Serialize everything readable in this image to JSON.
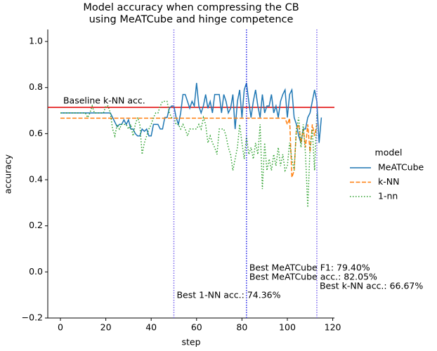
{
  "chart_data": {
    "type": "line",
    "title": [
      "Model accuracy when compressing the CB",
      "using MeATCube and hinge competence"
    ],
    "x_label": "step",
    "y_label": "accuracy",
    "x": [
      0,
      1,
      2,
      3,
      4,
      5,
      6,
      7,
      8,
      9,
      10,
      11,
      12,
      13,
      14,
      15,
      16,
      17,
      18,
      19,
      20,
      21,
      22,
      23,
      24,
      25,
      26,
      27,
      28,
      29,
      30,
      31,
      32,
      33,
      34,
      35,
      36,
      37,
      38,
      39,
      40,
      41,
      42,
      43,
      44,
      45,
      46,
      47,
      48,
      49,
      50,
      51,
      52,
      53,
      54,
      55,
      56,
      57,
      58,
      59,
      60,
      61,
      62,
      63,
      64,
      65,
      66,
      67,
      68,
      69,
      70,
      71,
      72,
      73,
      74,
      75,
      76,
      77,
      78,
      79,
      80,
      81,
      82,
      83,
      84,
      85,
      86,
      87,
      88,
      89,
      90,
      91,
      92,
      93,
      94,
      95,
      96,
      97,
      98,
      99,
      100,
      101,
      102,
      103,
      104,
      105,
      106,
      107,
      108,
      109,
      110,
      111,
      112,
      113,
      114,
      115
    ],
    "series": [
      {
        "name": "MeATCube",
        "color": "#1f77b4",
        "dash": "solid",
        "values": [
          0.69,
          0.69,
          0.69,
          0.69,
          0.69,
          0.69,
          0.69,
          0.69,
          0.69,
          0.69,
          0.69,
          0.69,
          0.69,
          0.69,
          0.69,
          0.69,
          0.69,
          0.69,
          0.69,
          0.69,
          0.69,
          0.69,
          0.69,
          0.67,
          0.65,
          0.63,
          0.64,
          0.64,
          0.66,
          0.64,
          0.66,
          0.62,
          0.62,
          0.6,
          0.59,
          0.59,
          0.62,
          0.61,
          0.62,
          0.59,
          0.59,
          0.64,
          0.64,
          0.64,
          0.62,
          0.62,
          0.67,
          0.67,
          0.71,
          0.72,
          0.72,
          0.67,
          0.64,
          0.69,
          0.77,
          0.77,
          0.74,
          0.71,
          0.74,
          0.72,
          0.82,
          0.72,
          0.69,
          0.72,
          0.77,
          0.71,
          0.74,
          0.69,
          0.77,
          0.77,
          0.77,
          0.69,
          0.77,
          0.74,
          0.69,
          0.71,
          0.77,
          0.62,
          0.74,
          0.79,
          0.67,
          0.79,
          0.82,
          0.74,
          0.67,
          0.74,
          0.79,
          0.72,
          0.67,
          0.77,
          0.69,
          0.72,
          0.72,
          0.77,
          0.69,
          0.72,
          0.67,
          0.74,
          0.77,
          0.79,
          0.67,
          0.77,
          0.79,
          0.67,
          0.64,
          0.59,
          0.56,
          0.62,
          0.62,
          0.67,
          0.69,
          0.74,
          0.79,
          0.74,
          0.56,
          0.67
        ]
      },
      {
        "name": "k-NN",
        "color": "#ff7f0e",
        "dash": "dashed",
        "values": [
          0.667,
          0.667,
          0.667,
          0.667,
          0.667,
          0.667,
          0.667,
          0.667,
          0.667,
          0.667,
          0.667,
          0.667,
          0.667,
          0.667,
          0.667,
          0.667,
          0.667,
          0.667,
          0.667,
          0.667,
          0.667,
          0.667,
          0.667,
          0.667,
          0.667,
          0.667,
          0.667,
          0.667,
          0.667,
          0.667,
          0.667,
          0.667,
          0.667,
          0.667,
          0.667,
          0.667,
          0.667,
          0.667,
          0.667,
          0.667,
          0.667,
          0.667,
          0.667,
          0.667,
          0.667,
          0.667,
          0.667,
          0.667,
          0.667,
          0.667,
          0.667,
          0.667,
          0.667,
          0.667,
          0.667,
          0.667,
          0.667,
          0.667,
          0.667,
          0.667,
          0.667,
          0.667,
          0.667,
          0.667,
          0.667,
          0.667,
          0.667,
          0.667,
          0.667,
          0.667,
          0.667,
          0.667,
          0.667,
          0.667,
          0.667,
          0.667,
          0.667,
          0.667,
          0.667,
          0.667,
          0.667,
          0.667,
          0.667,
          0.667,
          0.667,
          0.667,
          0.667,
          0.667,
          0.667,
          0.667,
          0.667,
          0.667,
          0.667,
          0.667,
          0.667,
          0.667,
          0.667,
          0.667,
          0.667,
          0.667,
          0.64,
          0.667,
          0.41,
          0.44,
          0.62,
          0.64,
          0.56,
          0.62,
          0.54,
          0.64,
          0.52,
          0.64,
          0.59,
          0.64,
          null,
          null
        ]
      },
      {
        "name": "1-nn",
        "color": "#2ca02c",
        "dash": "dotted",
        "values": [
          0.69,
          0.69,
          0.69,
          0.69,
          0.69,
          0.69,
          0.69,
          0.69,
          0.69,
          0.69,
          0.69,
          0.69,
          0.67,
          0.69,
          0.72,
          0.69,
          0.69,
          0.69,
          0.69,
          0.69,
          0.72,
          0.72,
          0.69,
          0.62,
          0.59,
          0.64,
          0.62,
          0.64,
          0.64,
          0.64,
          0.62,
          0.64,
          0.59,
          0.64,
          0.67,
          0.64,
          0.51,
          0.56,
          0.59,
          0.62,
          0.64,
          0.67,
          0.69,
          0.69,
          0.72,
          0.74,
          0.74,
          0.74,
          0.69,
          0.67,
          0.67,
          0.64,
          0.64,
          0.62,
          0.64,
          0.62,
          0.59,
          0.62,
          0.62,
          0.62,
          0.62,
          0.64,
          0.62,
          0.67,
          0.64,
          0.56,
          0.59,
          0.56,
          0.54,
          0.51,
          0.62,
          0.62,
          0.62,
          0.59,
          0.54,
          0.51,
          0.44,
          0.49,
          0.54,
          0.64,
          0.56,
          0.49,
          0.59,
          0.51,
          0.54,
          0.49,
          0.56,
          0.51,
          0.64,
          0.36,
          0.56,
          0.44,
          0.49,
          0.44,
          0.51,
          0.46,
          0.54,
          0.46,
          0.51,
          0.44,
          0.46,
          0.56,
          0.49,
          0.44,
          0.62,
          0.67,
          0.54,
          0.64,
          0.51,
          0.28,
          0.54,
          0.62,
          0.44,
          0.69,
          null,
          null
        ]
      }
    ],
    "hline": {
      "y": 0.7143,
      "color": "#e00000",
      "label": "Baseline k-NN acc."
    },
    "vlines": [
      {
        "x": 50,
        "color": "#7b68ee",
        "labels": [
          "Best 1-NN acc.: 74.36%"
        ]
      },
      {
        "x": 82,
        "color": "#2020e8",
        "labels": [
          "Best MeATCube F1: 79.40%",
          "Best MeATCube acc.: 82.05%"
        ]
      },
      {
        "x": 113,
        "color": "#7b68ee",
        "labels": [
          "Best k-NN acc.: 66.67%"
        ]
      }
    ],
    "xlim": [
      -5.57,
      120.75
    ],
    "xticks": [
      0,
      20,
      40,
      60,
      80,
      100,
      120
    ],
    "ylim": [
      -0.2,
      1.052
    ],
    "yticks": [
      {
        "value": -0.2,
        "label": "−0.2"
      },
      {
        "value": 0,
        "label": "0.0"
      },
      0.2,
      0.4,
      0.6,
      0.8,
      {
        "value": 1,
        "label": "1.0"
      }
    ],
    "legend": {
      "title": "model",
      "position": "right"
    }
  }
}
